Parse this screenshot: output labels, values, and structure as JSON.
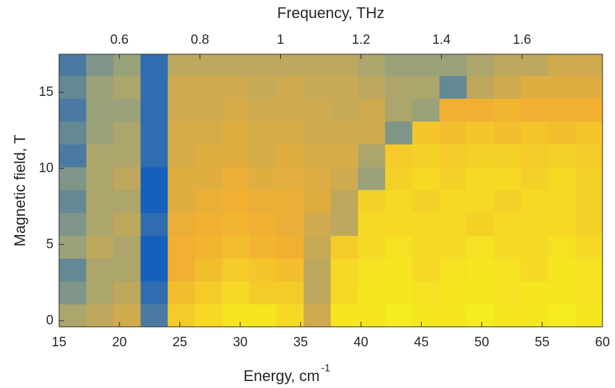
{
  "chart_data": {
    "type": "heatmap",
    "xlabel": "Energy, cm",
    "xlabel_superscript": "-1",
    "ylabel": "Magnetic field, T",
    "x2label": "Frequency, THz",
    "xlim": [
      15,
      60
    ],
    "xticks": [
      15,
      20,
      25,
      30,
      35,
      40,
      45,
      50,
      55,
      60
    ],
    "x2lim": [
      0.45,
      1.8
    ],
    "x2ticks": [
      0.6,
      0.8,
      1,
      1.2,
      1.4,
      1.6
    ],
    "ylim": [
      -0.4,
      17.5
    ],
    "yticks": [
      0,
      5,
      10,
      15
    ],
    "x_edges": [
      15,
      17.25,
      19.5,
      21.75,
      24,
      26.25,
      28.5,
      30.75,
      33,
      35.25,
      37.5,
      39.75,
      42,
      44.25,
      46.5,
      48.75,
      51,
      53.25,
      55.5,
      57.75,
      60
    ],
    "y_edges": [
      -0.4,
      1.1,
      2.6,
      4.1,
      5.6,
      7.1,
      8.6,
      10.1,
      11.6,
      13.1,
      14.6,
      16.1,
      17.5
    ],
    "clim": [
      0.2,
      0.95
    ],
    "colormap": [
      "#1560bd",
      "#9aa27a",
      "#f2b032",
      "#f7f41c"
    ],
    "z": [
      [
        0.5,
        0.55,
        0.6,
        0.3,
        0.8,
        0.85,
        0.9,
        0.9,
        0.85,
        0.6,
        0.9,
        0.9,
        0.92,
        0.9,
        0.9,
        0.92,
        0.9,
        0.9,
        0.92,
        0.9
      ],
      [
        0.4,
        0.5,
        0.55,
        0.25,
        0.75,
        0.8,
        0.85,
        0.8,
        0.8,
        0.55,
        0.85,
        0.9,
        0.9,
        0.88,
        0.9,
        0.9,
        0.88,
        0.9,
        0.9,
        0.88
      ],
      [
        0.35,
        0.5,
        0.5,
        0.2,
        0.7,
        0.75,
        0.8,
        0.78,
        0.75,
        0.55,
        0.85,
        0.88,
        0.9,
        0.85,
        0.88,
        0.9,
        0.88,
        0.85,
        0.9,
        0.88
      ],
      [
        0.45,
        0.55,
        0.5,
        0.2,
        0.7,
        0.72,
        0.75,
        0.72,
        0.7,
        0.58,
        0.8,
        0.85,
        0.88,
        0.85,
        0.85,
        0.88,
        0.85,
        0.85,
        0.88,
        0.85
      ],
      [
        0.4,
        0.5,
        0.55,
        0.25,
        0.68,
        0.7,
        0.72,
        0.7,
        0.68,
        0.6,
        0.55,
        0.85,
        0.85,
        0.85,
        0.85,
        0.82,
        0.85,
        0.85,
        0.85,
        0.82
      ],
      [
        0.35,
        0.5,
        0.5,
        0.2,
        0.65,
        0.68,
        0.7,
        0.68,
        0.68,
        0.65,
        0.55,
        0.82,
        0.85,
        0.82,
        0.85,
        0.85,
        0.82,
        0.85,
        0.85,
        0.82
      ],
      [
        0.4,
        0.5,
        0.55,
        0.2,
        0.65,
        0.65,
        0.68,
        0.65,
        0.66,
        0.64,
        0.6,
        0.45,
        0.82,
        0.85,
        0.82,
        0.85,
        0.85,
        0.82,
        0.85,
        0.82
      ],
      [
        0.3,
        0.5,
        0.5,
        0.25,
        0.62,
        0.65,
        0.65,
        0.62,
        0.65,
        0.62,
        0.62,
        0.5,
        0.8,
        0.82,
        0.8,
        0.82,
        0.82,
        0.8,
        0.82,
        0.8
      ],
      [
        0.35,
        0.45,
        0.5,
        0.25,
        0.62,
        0.62,
        0.65,
        0.62,
        0.62,
        0.6,
        0.6,
        0.6,
        0.4,
        0.78,
        0.75,
        0.78,
        0.75,
        0.78,
        0.75,
        0.78
      ],
      [
        0.3,
        0.45,
        0.45,
        0.25,
        0.6,
        0.6,
        0.62,
        0.6,
        0.6,
        0.6,
        0.58,
        0.6,
        0.5,
        0.45,
        0.7,
        0.7,
        0.72,
        0.7,
        0.7,
        0.7
      ],
      [
        0.35,
        0.45,
        0.5,
        0.25,
        0.6,
        0.6,
        0.6,
        0.58,
        0.6,
        0.58,
        0.58,
        0.55,
        0.5,
        0.5,
        0.35,
        0.55,
        0.6,
        0.65,
        0.65,
        0.65
      ],
      [
        0.3,
        0.4,
        0.45,
        0.25,
        0.55,
        0.55,
        0.55,
        0.55,
        0.55,
        0.55,
        0.55,
        0.5,
        0.45,
        0.45,
        0.45,
        0.5,
        0.55,
        0.55,
        0.6,
        0.6
      ]
    ]
  }
}
